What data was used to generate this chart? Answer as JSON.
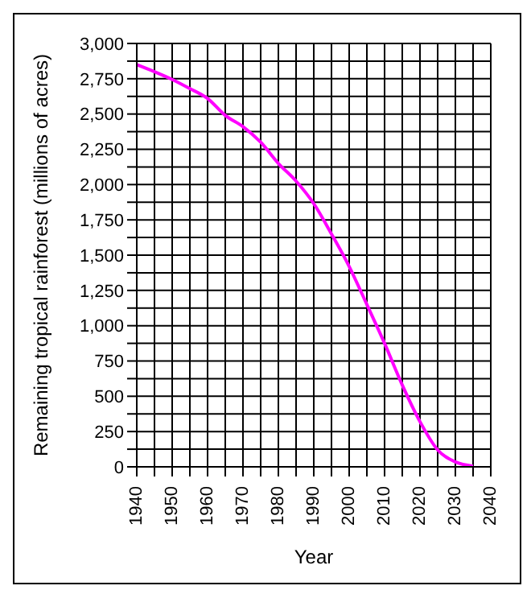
{
  "chart_data": {
    "type": "line",
    "xlabel": "Year",
    "ylabel": "Remaining tropical rainforest (millions of acres)",
    "x": [
      1940,
      1945,
      1950,
      1955,
      1960,
      1965,
      1970,
      1975,
      1980,
      1985,
      1990,
      1995,
      2000,
      2005,
      2010,
      2015,
      2020,
      2025,
      2030,
      2035
    ],
    "series": [
      {
        "color": "#ff00ff",
        "values": [
          2850,
          2800,
          2745,
          2680,
          2610,
          2490,
          2410,
          2300,
          2150,
          2025,
          1865,
          1650,
          1420,
          1150,
          875,
          580,
          320,
          120,
          35,
          5
        ]
      }
    ],
    "xlim": [
      1940,
      2040
    ],
    "xticks": [
      1940,
      {
        "value": 1945,
        "label": null
      },
      1950,
      {
        "value": 1955,
        "label": null
      },
      1960,
      {
        "value": 1965,
        "label": null
      },
      1970,
      {
        "value": 1975,
        "label": null
      },
      1980,
      {
        "value": 1985,
        "label": null
      },
      1990,
      {
        "value": 1995,
        "label": null
      },
      2000,
      {
        "value": 2005,
        "label": null
      },
      2010,
      {
        "value": 2015,
        "label": null
      },
      2020,
      {
        "value": 2025,
        "label": null
      },
      2030,
      {
        "value": 2035,
        "label": null
      },
      2040
    ],
    "ylim": [
      0,
      3000
    ],
    "yticks": [
      {
        "value": 0,
        "label": "0"
      },
      {
        "value": 125,
        "label": null
      },
      {
        "value": 250,
        "label": "250"
      },
      {
        "value": 375,
        "label": null
      },
      {
        "value": 500,
        "label": "500"
      },
      {
        "value": 625,
        "label": null
      },
      {
        "value": 750,
        "label": "750"
      },
      {
        "value": 875,
        "label": null
      },
      {
        "value": 1000,
        "label": "1,000"
      },
      {
        "value": 1125,
        "label": null
      },
      {
        "value": 1250,
        "label": "1,250"
      },
      {
        "value": 1375,
        "label": null
      },
      {
        "value": 1500,
        "label": "1,500"
      },
      {
        "value": 1625,
        "label": null
      },
      {
        "value": 1750,
        "label": "1,750"
      },
      {
        "value": 1875,
        "label": null
      },
      {
        "value": 2000,
        "label": "2,000"
      },
      {
        "value": 2125,
        "label": null
      },
      {
        "value": 2250,
        "label": "2,250"
      },
      {
        "value": 2375,
        "label": null
      },
      {
        "value": 2500,
        "label": "2,500"
      },
      {
        "value": 2625,
        "label": null
      },
      {
        "value": 2750,
        "label": "2,750"
      },
      {
        "value": 2875,
        "label": null
      },
      {
        "value": 3000,
        "label": "3,000"
      }
    ],
    "grid": true,
    "marker": "none",
    "line_style": "solid"
  }
}
